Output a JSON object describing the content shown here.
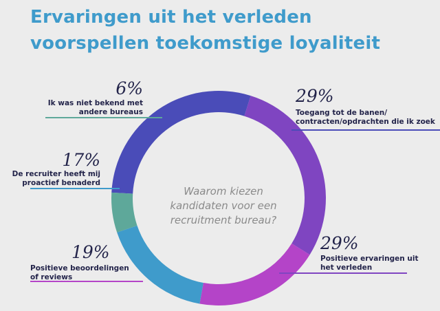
{
  "title_lines": [
    "Ervaringen uit het verleden",
    "voorspellen toekomstige loyaliteit"
  ],
  "center_lines": [
    "Waarom kiezen",
    "kandidaten voor een",
    "recruitment bureau?"
  ],
  "colors": {
    "title": "#3f9bcb",
    "text": "#23244a",
    "center_text": "#8a8a8a",
    "background": "#ececec"
  },
  "chart_data": {
    "type": "pie",
    "variant": "donut",
    "start_angle": 0,
    "direction": "clockwise",
    "slices": [
      {
        "pct_label": "29%",
        "value": 29,
        "label_lines": [
          "Toegang tot de banen/",
          "contracten/opdrachten die ik zoek"
        ],
        "color": "#4a4cb8"
      },
      {
        "pct_label": "29%",
        "value": 29,
        "label_lines": [
          "Positieve ervaringen uit",
          "het verleden"
        ],
        "color": "#7f45c1"
      },
      {
        "pct_label": "19%",
        "value": 19,
        "label_lines": [
          "Positieve beoordelingen",
          "of reviews"
        ],
        "color": "#b444c8"
      },
      {
        "pct_label": "17%",
        "value": 17,
        "label_lines": [
          "De recruiter heeft mij",
          "proactief benaderd"
        ],
        "color": "#3f9bcb"
      },
      {
        "pct_label": "6%",
        "value": 6,
        "label_lines": [
          "Ik was niet bekend met",
          "andere bureaus"
        ],
        "color": "#5ea89a"
      }
    ]
  }
}
